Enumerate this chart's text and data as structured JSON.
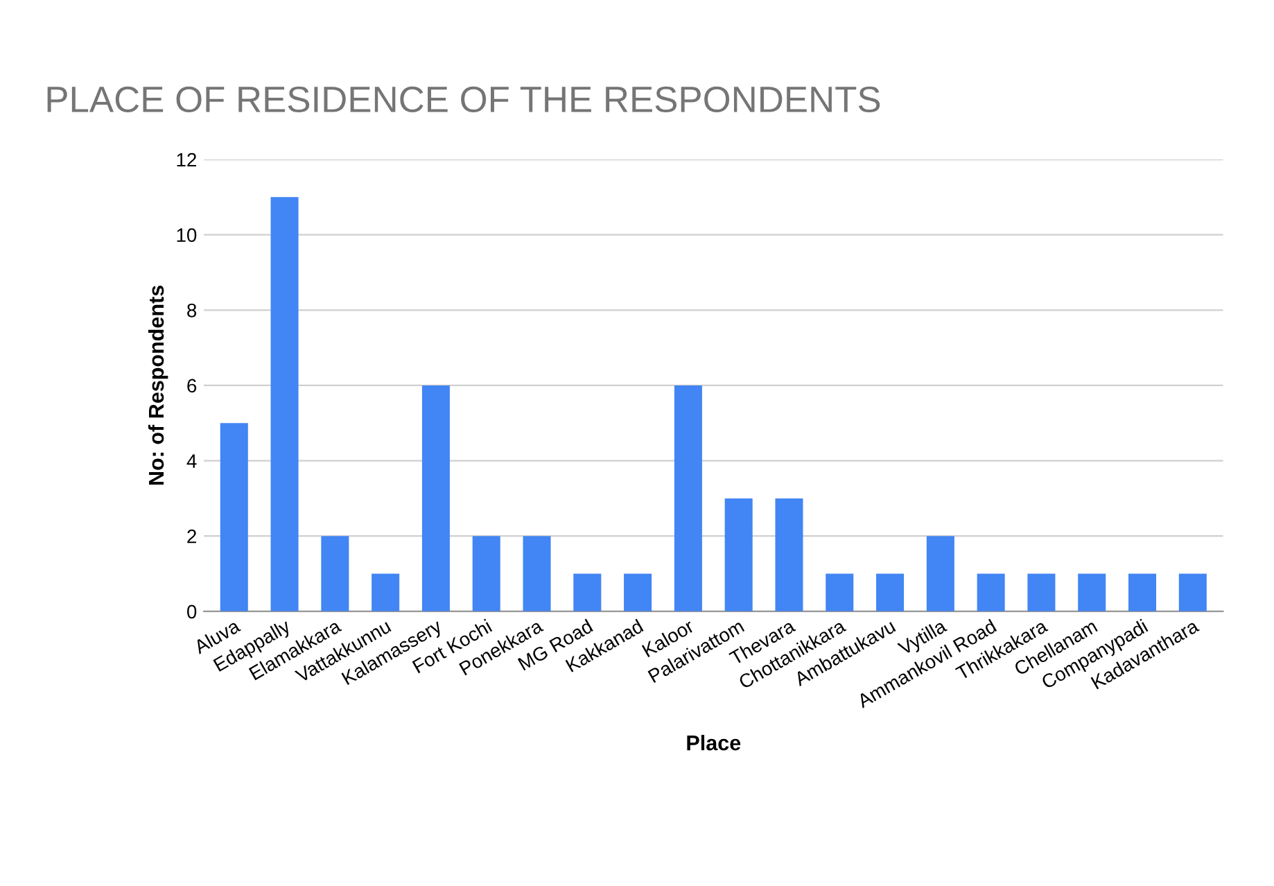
{
  "chart_data": {
    "type": "bar",
    "title": "PLACE OF RESIDENCE OF THE RESPONDENTS",
    "xlabel": "Place",
    "ylabel": "No: of Respondents",
    "categories": [
      "Aluva",
      "Edappally",
      "Elamakkara",
      "Vattakkunnu",
      "Kalamassery",
      "Fort Kochi",
      "Ponekkara",
      "MG Road",
      "Kakkanad",
      "Kaloor",
      "Palarivattom",
      "Thevara",
      "Chottanikkara",
      "Ambattukavu",
      "Vytilla",
      "Ammankovil Road",
      "Thrikkakara",
      "Chellanam",
      "Companypadi",
      "Kadavanthara"
    ],
    "values": [
      5,
      11,
      2,
      1,
      6,
      2,
      2,
      1,
      1,
      6,
      3,
      3,
      1,
      1,
      2,
      1,
      1,
      1,
      1,
      1
    ],
    "color": "#4285f4",
    "ylim": [
      0,
      12
    ],
    "yticks": [
      0,
      2,
      4,
      6,
      8,
      10,
      12
    ],
    "grid": "y",
    "legend": false
  }
}
